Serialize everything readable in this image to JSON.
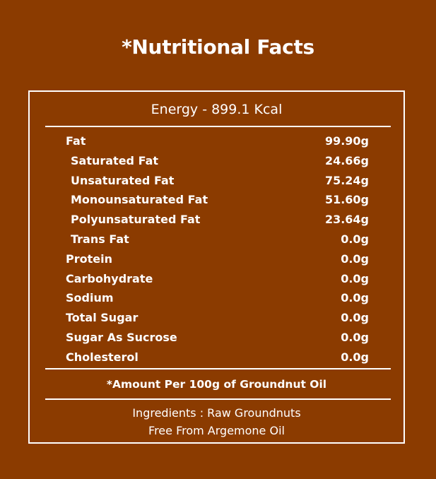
{
  "title": "*Nutritional Facts",
  "energy": "Energy - 899.1 Kcal",
  "nutrients": [
    {
      "label": "Fat",
      "value": "99.90g"
    },
    {
      "label": "Saturated Fat",
      "value": "24.66g"
    },
    {
      "label": "Unsaturated Fat",
      "value": "75.24g"
    },
    {
      "label": "Monounsaturated Fat",
      "value": "51.60g"
    },
    {
      "label": "Polyunsaturated Fat",
      "value": "23.64g"
    },
    {
      "label": "Trans Fat",
      "value": "0.0g"
    },
    {
      "label": "Protein",
      "value": "0.0g"
    },
    {
      "label": "Carbohydrate",
      "value": "0.0g"
    },
    {
      "label": "Sodium",
      "value": "0.0g"
    },
    {
      "label": "Total Sugar",
      "value": "0.0g"
    },
    {
      "label": "Sugar As Sucrose",
      "value": "0.0g"
    },
    {
      "label": "Cholesterol",
      "value": "0.0g"
    }
  ],
  "footnote": "*Amount Per 100g of Groundnut Oil",
  "ingredients_line1": "Ingredients : Raw Groundnuts",
  "ingredients_line2": "Free From Argemone Oil",
  "colors": {
    "background": "#8b3b00",
    "text": "#ffffff"
  }
}
